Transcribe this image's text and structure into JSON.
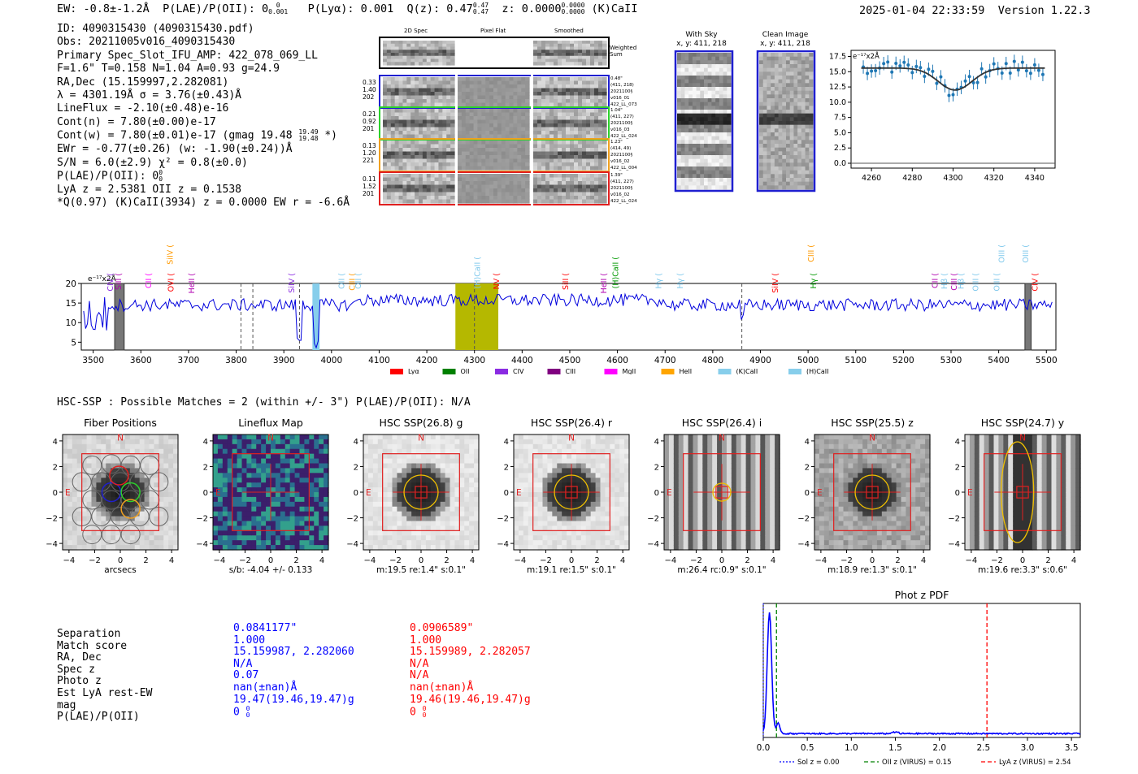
{
  "header": {
    "ew": "EW: -0.8±-1.2Å",
    "plae": "P(LAE)/P(OII): 0",
    "plae_hi": "0",
    "plae_lo": "0.001",
    "plya": "P(Lyα): 0.001",
    "qz": "Q(z): 0.47",
    "qz_hi": "0.47",
    "qz_lo": "0.47",
    "z": "z: 0.0000",
    "z_hi": "0.0000",
    "z_lo": "0.0000",
    "z_name": "(K)CaII",
    "timestamp": "2025-01-04 22:33:59",
    "version": "Version 1.22.3"
  },
  "info": {
    "id": "ID: 4090315430 (4090315430.pdf)",
    "obs": "Obs: 20211005v016_4090315430",
    "primary": "Primary Spec_Slot_IFU_AMP: 422_078_069_LL",
    "params": "F=1.6\"  T=0.158  N=1.04  A=0.93  g=24.9",
    "radec": "RA,Dec (15.159997,2.282081)",
    "lambda": "λ = 4301.19Å  σ = 3.76(±0.43)Å",
    "lineflux": "LineFlux = -2.10(±0.48)e-16",
    "contn": "Cont(n) = 7.80(±0.00)e-17",
    "contw": "Cont(w) = 7.80(±0.01)e-17 (gmag 19.48",
    "contw_hi": "19.49",
    "contw_lo": "19.48",
    "contw_end": "*)",
    "ewr": "EWr = -0.77(±0.26) (w: -1.90(±0.24))Å",
    "sn": "S/N = 6.0(±2.9)  χ² = 0.8(±0.0)",
    "plae": "P(LAE)/P(OII): 0",
    "plae_hi": "0",
    "plae_lo": "0",
    "lyaz": "LyA z = 2.5381  OII z = 0.1538",
    "q": "*Q(0.97) (K)CaII(3934) z = 0.0000  EW r = -6.6Å"
  },
  "cutouts": {
    "col_2d": "2D Spec",
    "col_flat": "Pixel Flat",
    "col_smooth": "Smoothed",
    "weighted": "Weighted Sum",
    "rows": [
      {
        "left": [
          "0.33",
          "1.40",
          "202"
        ],
        "right": [
          "0.48\"",
          "(411, 218)",
          "2021100§",
          "v016_01",
          "422_LL_073"
        ],
        "color": "#1f1fd0"
      },
      {
        "left": [
          "0.21",
          "0.92",
          "201"
        ],
        "right": [
          "1.04\"",
          "(411, 227)",
          "2021100§",
          "v016_03",
          "422_LL_024"
        ],
        "color": "#2cd02c"
      },
      {
        "left": [
          "0.13",
          "1.20",
          "221"
        ],
        "right": [
          "1.23\"",
          "(414, 49)",
          "2021100§",
          "v016_02",
          "422_LL_004"
        ],
        "color": "#f0a020"
      },
      {
        "left": [
          "0.11",
          "1.52",
          "201"
        ],
        "right": [
          "1.39\"",
          "(411, 227)",
          "2021100§",
          "v016_02",
          "422_LL_024"
        ],
        "color": "#e02020"
      }
    ]
  },
  "sky": {
    "with_sky": "With Sky",
    "with_sky_xy": "x, y: 411, 218",
    "clean": "Clean Image",
    "clean_xy": "x, y: 411, 218"
  },
  "zoom_chart": {
    "type": "line",
    "scale_label": "e⁻¹⁷x2Å",
    "xlim": [
      4250,
      4350
    ],
    "ylim": [
      -0.8,
      18.5
    ],
    "xticks": [
      4260,
      4280,
      4300,
      4320,
      4340
    ],
    "yticks": [
      "0.0",
      "2.5",
      "5.0",
      "7.5",
      "10.0",
      "12.5",
      "15.0",
      "17.5"
    ],
    "fit": {
      "continuum": 15.6,
      "center": 4301,
      "sigma": 3.76,
      "depth": 3.6
    }
  },
  "spectrum": {
    "scale_label": "e⁻¹⁷x2Å",
    "xlim": [
      3475,
      5520
    ],
    "ylim": [
      3,
      20
    ],
    "xticks": [
      3500,
      3600,
      3700,
      3800,
      3900,
      4000,
      4100,
      4200,
      4300,
      4400,
      4500,
      4600,
      4700,
      4800,
      4900,
      5000,
      5100,
      5200,
      5300,
      5400,
      5500
    ],
    "yticks": [
      5,
      10,
      15,
      20
    ],
    "line_labels": [
      {
        "text": "CIV",
        "wave": 3535,
        "color": "#8a2be2",
        "row": 2
      },
      {
        "text": "SiII",
        "wave": 3552,
        "color": "#b000b0",
        "row": 2
      },
      {
        "text": "CII",
        "wave": 3615,
        "color": "#ff00ff",
        "row": 2
      },
      {
        "text": "SiIV",
        "wave": 3660,
        "color": "#ff9900",
        "row": 0
      },
      {
        "text": "OVI",
        "wave": 3662,
        "color": "#ff0000",
        "row": 2
      },
      {
        "text": "HeII",
        "wave": 3705,
        "color": "#b000b0",
        "row": 2
      },
      {
        "text": "SiIV",
        "wave": 3915,
        "color": "#8a2be2",
        "row": 2
      },
      {
        "text": "OII",
        "wave": 4020,
        "color": "#7ec8ec",
        "row": 2
      },
      {
        "text": "CIII",
        "wave": 4042,
        "color": "#ff9900",
        "row": 2
      },
      {
        "text": "OII",
        "wave": 4055,
        "color": "#7ec8ec",
        "row": 2
      },
      {
        "text": "(H)CaII",
        "wave": 4305,
        "color": "#7ec8ec",
        "row": 1
      },
      {
        "text": "NV",
        "wave": 4345,
        "color": "#ff0000",
        "row": 2
      },
      {
        "text": "SiII",
        "wave": 4490,
        "color": "#ff0000",
        "row": 2
      },
      {
        "text": "HeII",
        "wave": 4570,
        "color": "#b000b0",
        "row": 2
      },
      {
        "text": "(H)CaII",
        "wave": 4595,
        "color": "#009900",
        "row": 1
      },
      {
        "text": "Hγ",
        "wave": 4685,
        "color": "#7ec8ec",
        "row": 2
      },
      {
        "text": "Hγ",
        "wave": 4730,
        "color": "#7ec8ec",
        "row": 2
      },
      {
        "text": "SiIV",
        "wave": 4930,
        "color": "#ff0000",
        "row": 2
      },
      {
        "text": "CIII",
        "wave": 5005,
        "color": "#ff9900",
        "row": 0
      },
      {
        "text": "Hγ",
        "wave": 5010,
        "color": "#009900",
        "row": 2
      },
      {
        "text": "CII",
        "wave": 5265,
        "color": "#b000b0",
        "row": 2
      },
      {
        "text": "Hβ",
        "wave": 5285,
        "color": "#7ec8ec",
        "row": 2
      },
      {
        "text": "CIII",
        "wave": 5305,
        "color": "#b000b0",
        "row": 2
      },
      {
        "text": "Hβ",
        "wave": 5320,
        "color": "#7ec8ec",
        "row": 2
      },
      {
        "text": "OIII",
        "wave": 5350,
        "color": "#7ec8ec",
        "row": 2
      },
      {
        "text": "OIII",
        "wave": 5395,
        "color": "#7ec8ec",
        "row": 2
      },
      {
        "text": "OIII",
        "wave": 5405,
        "color": "#7ec8ec",
        "row": 0
      },
      {
        "text": "OIII",
        "wave": 5455,
        "color": "#7ec8ec",
        "row": 0
      },
      {
        "text": "CIV",
        "wave": 5475,
        "color": "#ff0000",
        "row": 2
      }
    ],
    "legend": [
      {
        "label": "Lyα",
        "color": "#ff0000"
      },
      {
        "label": "OII",
        "color": "#008000"
      },
      {
        "label": "CIV",
        "color": "#8a2be2"
      },
      {
        "label": "CIII",
        "color": "#800080"
      },
      {
        "label": "MgII",
        "color": "#ff00ff"
      },
      {
        "label": "HeII",
        "color": "#ffa500"
      },
      {
        "label": "(K)CaII",
        "color": "#87ceeb"
      },
      {
        "label": "(H)CaII",
        "color": "#87ceeb"
      }
    ]
  },
  "hsc": {
    "summary": "HSC-SSP : Possible Matches = 2 (within +/- 3\")  P(LAE)/P(OII): N/A",
    "panels": [
      {
        "title": "Fiber Positions",
        "caption": "arcsecs"
      },
      {
        "title": "Lineflux Map",
        "caption": "s/b: -4.04 +/- 0.133"
      },
      {
        "title": "HSC SSP(26.8) g",
        "caption": "m:19.5  re:1.4\"  s:0.1\""
      },
      {
        "title": "HSC SSP(26.4) r",
        "caption": "m:19.1  re:1.5\"  s:0.1\""
      },
      {
        "title": "HSC SSP(26.4) i",
        "caption": "m:26.4 rc:0.9\"  s:0.1\""
      },
      {
        "title": "HSC SSP(25.5) z",
        "caption": "m:18.9  re:1.3\"  s:0.1\""
      },
      {
        "title": "HSC SSP(24.7) y",
        "caption": "m:19.6  re:3.3\"  s:0.6\""
      }
    ],
    "ticks": [
      "4",
      "2",
      "0",
      "−2",
      "−4"
    ],
    "xticks": [
      "−4",
      "−2",
      "0",
      "2",
      "4"
    ],
    "north": "N",
    "east": "E"
  },
  "matches": {
    "labels": [
      "Separation",
      "Match score",
      "RA, Dec",
      "Spec z",
      "Photo z",
      "Est LyA rest-EW",
      "mag",
      "P(LAE)/P(OII)"
    ],
    "m1": [
      "0.0841177\"",
      "1.000",
      "15.159987, 2.282060",
      "N/A",
      "0.07",
      "nan(±nan)Å",
      "19.47(19.46,19.47)g",
      "0"
    ],
    "m2": [
      "0.0906589\"",
      "1.000",
      "15.159989, 2.282057",
      "N/A",
      "N/A",
      "nan(±nan)Å",
      "19.46(19.46,19.47)g",
      "0"
    ],
    "stack_hi": "0",
    "stack_lo": "0"
  },
  "photz": {
    "type": "line",
    "title": "Phot z PDF",
    "xlim": [
      0,
      3.6
    ],
    "xticks": [
      0.0,
      0.5,
      1.0,
      1.5,
      2.0,
      2.5,
      3.0,
      3.5
    ],
    "xtick_labels": [
      "0.0",
      "0.5",
      "1.0",
      "1.5",
      "2.0",
      "2.5",
      "3.0",
      "3.5"
    ],
    "sol_z": 0.0,
    "oii_z": 0.15,
    "lya_z": 2.54,
    "legend": [
      {
        "label": "Sol z = 0.00",
        "color": "#0000ff"
      },
      {
        "label": "OII z (VIRUS) = 0.15",
        "color": "#008000"
      },
      {
        "label": "LyA z (VIRUS) = 2.54",
        "color": "#ff0000"
      }
    ]
  }
}
